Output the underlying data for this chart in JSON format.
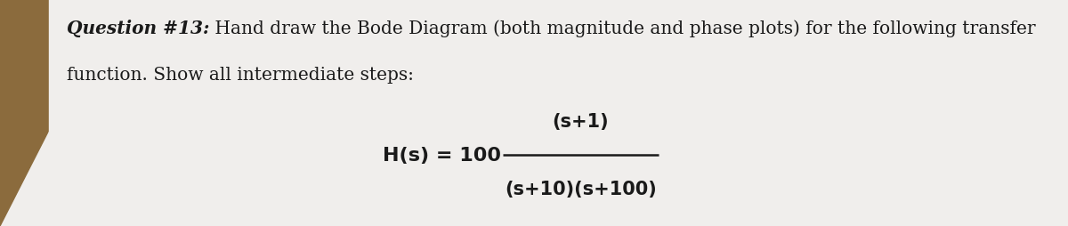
{
  "paper_color": "#f0eeec",
  "desk_color": "#8B6B3D",
  "text_color": "#1a1a1a",
  "line1_bold": "Question #13:",
  "line1_rest": " Hand draw the Bode Diagram (both magnitude and phase plots) for the following transfer",
  "line2": "function. Show all intermediate steps:",
  "formula_left": "H(s) = 100",
  "formula_num": "(s+1)",
  "formula_den": "(s+10)(s+100)",
  "font_size_main": 14.5,
  "font_size_formula": 15
}
